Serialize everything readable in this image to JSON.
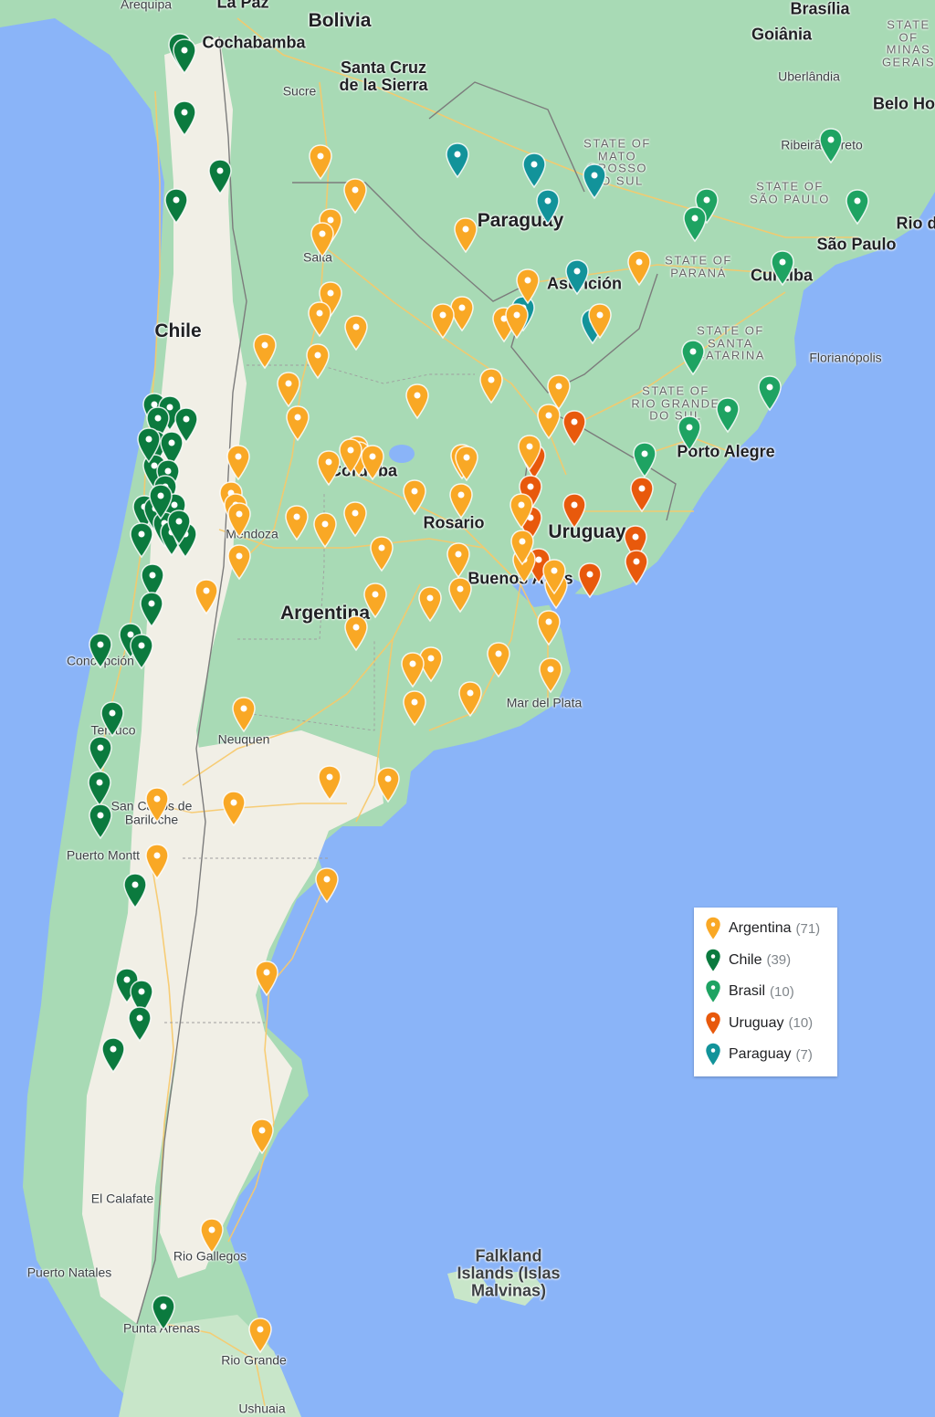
{
  "colors": {
    "water": "#8ab4f8",
    "land_green": "#a8dab5",
    "land_dry": "#f1efe6",
    "road": "#f8c969",
    "border": "#7c7c7c",
    "argentina": "#f9a825",
    "chile": "#0b7a3e",
    "brasil": "#1ea362",
    "uruguay": "#e8590c",
    "paraguay": "#12939a"
  },
  "places": [
    {
      "label": "Arequipa",
      "type": "city"
    },
    {
      "label": "La Paz",
      "type": "big"
    },
    {
      "label": "Bolivia",
      "type": "country"
    },
    {
      "label": "Brasília",
      "type": "big"
    },
    {
      "label": "Cochabamba",
      "type": "big"
    },
    {
      "label": "Goiânia",
      "type": "big"
    },
    {
      "label": "STATE OF MINAS GERAIS",
      "type": "region"
    },
    {
      "label": "Santa Cruz de la Sierra",
      "type": "big"
    },
    {
      "label": "Uberlândia",
      "type": "city"
    },
    {
      "label": "Sucre",
      "type": "city"
    },
    {
      "label": "Belo Ho",
      "type": "big"
    },
    {
      "label": "STATE OF MATO GROSSO DO SUL",
      "type": "region"
    },
    {
      "label": "Ribeirão Preto",
      "type": "city"
    },
    {
      "label": "STATE OF SÃO PAULO",
      "type": "region"
    },
    {
      "label": "Paraguay",
      "type": "country"
    },
    {
      "label": "Rio d",
      "type": "big"
    },
    {
      "label": "São Paulo",
      "type": "big"
    },
    {
      "label": "Salta",
      "type": "city"
    },
    {
      "label": "STATE OF PARANÁ",
      "type": "region"
    },
    {
      "label": "Curitiba",
      "type": "big"
    },
    {
      "label": "Asunción",
      "type": "big"
    },
    {
      "label": "Chile",
      "type": "country"
    },
    {
      "label": "STATE OF SANTA CATARINA",
      "type": "region"
    },
    {
      "label": "Florianópolis",
      "type": "city"
    },
    {
      "label": "STATE OF RIO GRANDE DO SUL",
      "type": "region"
    },
    {
      "label": "Porto Alegre",
      "type": "big"
    },
    {
      "label": "Córdoba",
      "type": "big"
    },
    {
      "label": "Rosario",
      "type": "big"
    },
    {
      "label": "Uruguay",
      "type": "country"
    },
    {
      "label": "Mendoza",
      "type": "city"
    },
    {
      "label": "Buenos Aires",
      "type": "big"
    },
    {
      "label": "Argentina",
      "type": "country"
    },
    {
      "label": "Concepción",
      "type": "city"
    },
    {
      "label": "Mar del Plata",
      "type": "city"
    },
    {
      "label": "Temuco",
      "type": "city"
    },
    {
      "label": "Neuquen",
      "type": "city"
    },
    {
      "label": "San Carlos de Bariloche",
      "type": "city"
    },
    {
      "label": "Puerto Montt",
      "type": "city"
    },
    {
      "label": "El Calafate",
      "type": "city"
    },
    {
      "label": "Falkland Islands (Islas Malvinas)",
      "type": "islands"
    },
    {
      "label": "Rio Gallegos",
      "type": "city"
    },
    {
      "label": "Puerto Natales",
      "type": "city"
    },
    {
      "label": "Punta Arenas",
      "type": "city"
    },
    {
      "label": "Rio Grande",
      "type": "city"
    },
    {
      "label": "Ushuaia",
      "type": "city"
    }
  ],
  "legend": [
    {
      "country": "Argentina",
      "count": "(71)",
      "color_key": "argentina"
    },
    {
      "country": "Chile",
      "count": "(39)",
      "color_key": "chile"
    },
    {
      "country": "Brasil",
      "count": "(10)",
      "color_key": "brasil"
    },
    {
      "country": "Uruguay",
      "count": "(10)",
      "color_key": "uruguay"
    },
    {
      "country": "Paraguay",
      "count": "(7)",
      "color_key": "paraguay"
    }
  ]
}
